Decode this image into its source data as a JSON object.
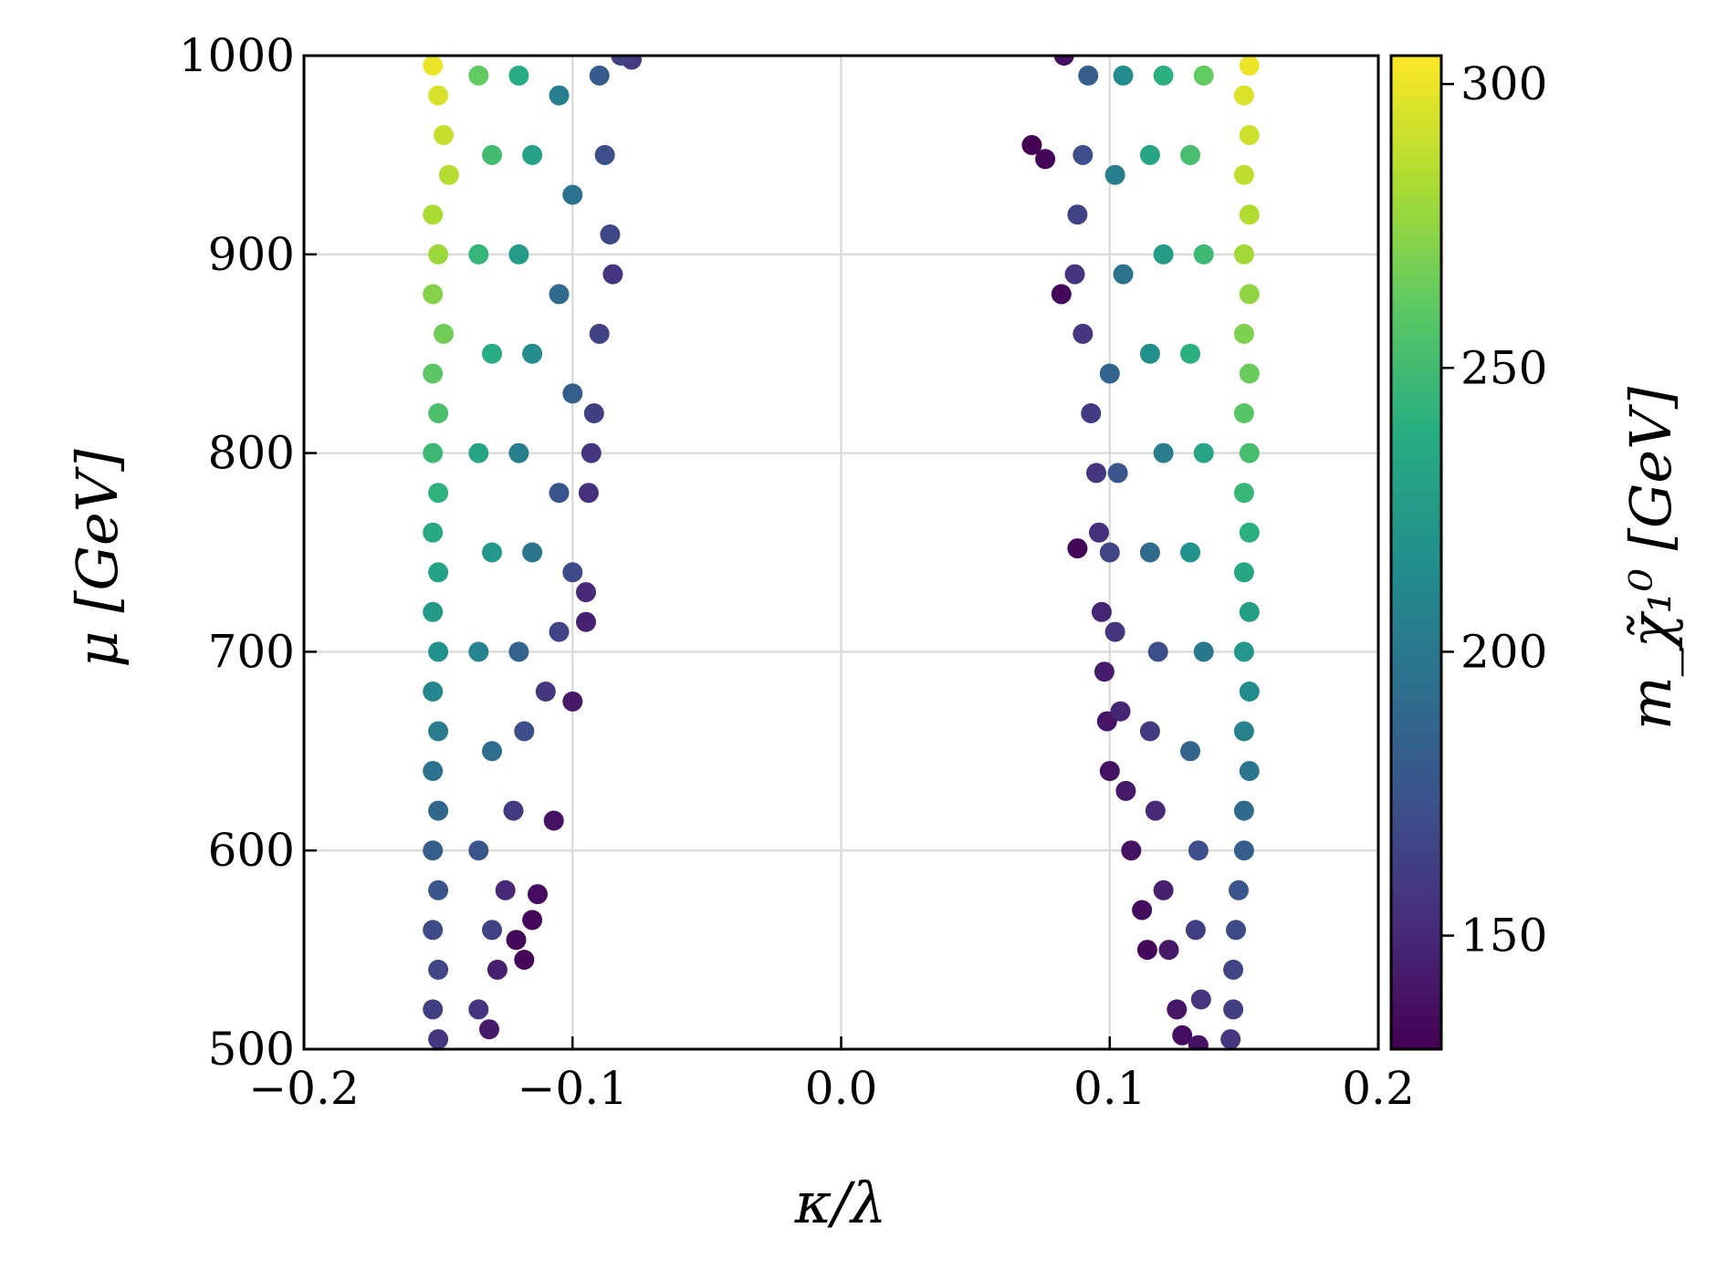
{
  "chart_data": {
    "type": "scatter",
    "xlabel": "κ/λ",
    "ylabel": "μ  [GeV]",
    "xlim": [
      -0.2,
      0.2
    ],
    "ylim": [
      500,
      1000
    ],
    "x_ticks": [
      "−0.2",
      "−0.1",
      "0.0",
      "0.1",
      "0.2"
    ],
    "x_tick_values": [
      -0.2,
      -0.1,
      0.0,
      0.1,
      0.2
    ],
    "y_ticks": [
      "500",
      "600",
      "700",
      "800",
      "900",
      "1000"
    ],
    "y_tick_values": [
      500,
      600,
      700,
      800,
      900,
      1000
    ],
    "grid": true,
    "colorbar": {
      "label": "m_χ̃₁⁰  [GeV]",
      "colormap": "viridis",
      "range": [
        130,
        305
      ],
      "ticks": [
        "150",
        "200",
        "250",
        "300"
      ],
      "tick_values": [
        150,
        200,
        250,
        300
      ]
    },
    "series": [
      {
        "band": "negative κ/λ",
        "points": [
          [
            -0.152,
            995,
            300
          ],
          [
            -0.15,
            980,
            295
          ],
          [
            -0.148,
            960,
            290
          ],
          [
            -0.146,
            940,
            285
          ],
          [
            -0.152,
            920,
            282
          ],
          [
            -0.15,
            900,
            278
          ],
          [
            -0.152,
            880,
            272
          ],
          [
            -0.148,
            860,
            266
          ],
          [
            -0.152,
            840,
            260
          ],
          [
            -0.15,
            820,
            254
          ],
          [
            -0.152,
            800,
            248
          ],
          [
            -0.15,
            780,
            242
          ],
          [
            -0.152,
            760,
            236
          ],
          [
            -0.15,
            740,
            230
          ],
          [
            -0.152,
            720,
            224
          ],
          [
            -0.15,
            700,
            218
          ],
          [
            -0.152,
            680,
            210
          ],
          [
            -0.15,
            660,
            202
          ],
          [
            -0.152,
            640,
            195
          ],
          [
            -0.15,
            620,
            188
          ],
          [
            -0.152,
            600,
            182
          ],
          [
            -0.15,
            580,
            176
          ],
          [
            -0.152,
            560,
            170
          ],
          [
            -0.15,
            540,
            166
          ],
          [
            -0.152,
            520,
            162
          ],
          [
            -0.15,
            505,
            158
          ],
          [
            -0.135,
            990,
            262
          ],
          [
            -0.13,
            950,
            250
          ],
          [
            -0.135,
            900,
            245
          ],
          [
            -0.13,
            850,
            238
          ],
          [
            -0.135,
            800,
            232
          ],
          [
            -0.13,
            750,
            222
          ],
          [
            -0.135,
            700,
            208
          ],
          [
            -0.13,
            650,
            192
          ],
          [
            -0.135,
            600,
            176
          ],
          [
            -0.13,
            560,
            164
          ],
          [
            -0.135,
            520,
            156
          ],
          [
            -0.12,
            990,
            238
          ],
          [
            -0.115,
            950,
            230
          ],
          [
            -0.12,
            900,
            225
          ],
          [
            -0.115,
            850,
            215
          ],
          [
            -0.12,
            800,
            205
          ],
          [
            -0.115,
            750,
            198
          ],
          [
            -0.12,
            700,
            185
          ],
          [
            -0.118,
            660,
            172
          ],
          [
            -0.122,
            620,
            160
          ],
          [
            -0.125,
            580,
            150
          ],
          [
            -0.128,
            540,
            145
          ],
          [
            -0.131,
            510,
            142
          ],
          [
            -0.105,
            980,
            205
          ],
          [
            -0.1,
            930,
            195
          ],
          [
            -0.105,
            880,
            190
          ],
          [
            -0.1,
            830,
            182
          ],
          [
            -0.105,
            780,
            176
          ],
          [
            -0.1,
            740,
            170
          ],
          [
            -0.105,
            710,
            165
          ],
          [
            -0.11,
            680,
            158
          ],
          [
            -0.09,
            990,
            180
          ],
          [
            -0.088,
            950,
            172
          ],
          [
            -0.086,
            910,
            168
          ],
          [
            -0.085,
            890,
            158
          ],
          [
            -0.09,
            860,
            164
          ],
          [
            -0.092,
            820,
            162
          ],
          [
            -0.093,
            800,
            158
          ],
          [
            -0.094,
            780,
            154
          ],
          [
            -0.095,
            730,
            150
          ],
          [
            -0.095,
            715,
            146
          ],
          [
            -0.1,
            675,
            142
          ],
          [
            -0.107,
            615,
            138
          ],
          [
            -0.113,
            578,
            136
          ],
          [
            -0.115,
            565,
            134
          ],
          [
            -0.118,
            545,
            132
          ],
          [
            -0.121,
            555,
            134
          ],
          [
            -0.078,
            998,
            160
          ],
          [
            -0.082,
            1000,
            164
          ]
        ]
      },
      {
        "band": "positive κ/λ",
        "points": [
          [
            0.152,
            995,
            300
          ],
          [
            0.15,
            980,
            296
          ],
          [
            0.152,
            960,
            292
          ],
          [
            0.15,
            940,
            288
          ],
          [
            0.152,
            920,
            284
          ],
          [
            0.15,
            900,
            280
          ],
          [
            0.152,
            880,
            275
          ],
          [
            0.15,
            860,
            270
          ],
          [
            0.152,
            840,
            264
          ],
          [
            0.15,
            820,
            258
          ],
          [
            0.152,
            800,
            252
          ],
          [
            0.15,
            780,
            246
          ],
          [
            0.152,
            760,
            240
          ],
          [
            0.15,
            740,
            234
          ],
          [
            0.152,
            720,
            228
          ],
          [
            0.15,
            700,
            222
          ],
          [
            0.152,
            680,
            214
          ],
          [
            0.15,
            660,
            206
          ],
          [
            0.152,
            640,
            198
          ],
          [
            0.15,
            620,
            190
          ],
          [
            0.15,
            600,
            182
          ],
          [
            0.148,
            580,
            176
          ],
          [
            0.147,
            560,
            170
          ],
          [
            0.146,
            540,
            166
          ],
          [
            0.146,
            520,
            162
          ],
          [
            0.145,
            505,
            158
          ],
          [
            0.135,
            990,
            262
          ],
          [
            0.13,
            950,
            252
          ],
          [
            0.135,
            900,
            248
          ],
          [
            0.13,
            850,
            240
          ],
          [
            0.135,
            800,
            232
          ],
          [
            0.13,
            750,
            218
          ],
          [
            0.135,
            700,
            200
          ],
          [
            0.13,
            650,
            186
          ],
          [
            0.133,
            600,
            172
          ],
          [
            0.132,
            560,
            162
          ],
          [
            0.134,
            525,
            156
          ],
          [
            0.12,
            990,
            240
          ],
          [
            0.115,
            950,
            232
          ],
          [
            0.12,
            900,
            226
          ],
          [
            0.115,
            850,
            216
          ],
          [
            0.12,
            800,
            204
          ],
          [
            0.115,
            750,
            190
          ],
          [
            0.118,
            700,
            172
          ],
          [
            0.115,
            660,
            160
          ],
          [
            0.117,
            620,
            150
          ],
          [
            0.12,
            580,
            145
          ],
          [
            0.122,
            550,
            142
          ],
          [
            0.125,
            520,
            140
          ],
          [
            0.105,
            990,
            214
          ],
          [
            0.102,
            940,
            204
          ],
          [
            0.105,
            890,
            196
          ],
          [
            0.1,
            840,
            186
          ],
          [
            0.103,
            790,
            176
          ],
          [
            0.1,
            750,
            166
          ],
          [
            0.102,
            710,
            156
          ],
          [
            0.104,
            670,
            148
          ],
          [
            0.106,
            630,
            142
          ],
          [
            0.108,
            600,
            138
          ],
          [
            0.112,
            570,
            136
          ],
          [
            0.114,
            550,
            134
          ],
          [
            0.092,
            990,
            182
          ],
          [
            0.09,
            950,
            172
          ],
          [
            0.088,
            920,
            164
          ],
          [
            0.087,
            890,
            156
          ],
          [
            0.09,
            860,
            158
          ],
          [
            0.093,
            820,
            160
          ],
          [
            0.095,
            790,
            158
          ],
          [
            0.096,
            760,
            154
          ],
          [
            0.097,
            720,
            148
          ],
          [
            0.098,
            690,
            144
          ],
          [
            0.099,
            665,
            140
          ],
          [
            0.1,
            640,
            138
          ],
          [
            0.071,
            955,
            130
          ],
          [
            0.076,
            948,
            132
          ],
          [
            0.083,
            1000,
            138
          ],
          [
            0.082,
            880,
            134
          ],
          [
            0.088,
            752,
            132
          ],
          [
            0.127,
            507,
            136
          ],
          [
            0.133,
            502,
            138
          ]
        ]
      }
    ]
  }
}
